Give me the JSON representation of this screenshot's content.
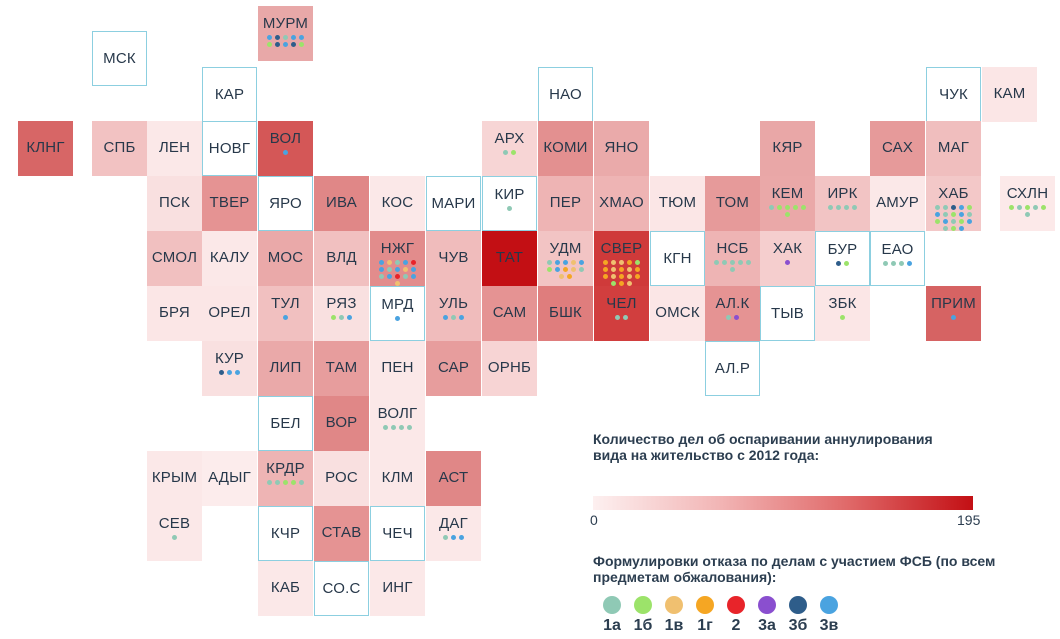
{
  "regions": [
    {
      "label": "МУРМ",
      "fill": "#e8a8a8",
      "dots": [
        "#4aa3e0",
        "#2e5d8a",
        "#8fc9b5",
        "#4aa3e0",
        "#4aa3e0",
        "#9ce36a",
        "#2e5d8a",
        "#4aa3e0",
        "#2e5d8a",
        "#9ce36a"
      ]
    },
    {
      "label": "МСК",
      "fill": "#ffffff",
      "outlined": true
    },
    {
      "label": "КАР",
      "fill": "#ffffff",
      "outlined": true
    },
    {
      "label": "НАО",
      "fill": "#ffffff",
      "outlined": true
    },
    {
      "label": "ЧУК",
      "fill": "#ffffff",
      "outlined": true
    },
    {
      "label": "КАМ",
      "fill": "#fbe6e6"
    },
    {
      "label": "КЛНГ",
      "fill": "#d76666"
    },
    {
      "label": "СПБ",
      "fill": "#f2c2c2"
    },
    {
      "label": "ЛЕН",
      "fill": "#fbe8e8"
    },
    {
      "label": "НОВГ",
      "fill": "#ffffff",
      "outlined": true
    },
    {
      "label": "ВОЛ",
      "fill": "#d45757",
      "dots": [
        "#4aa3e0"
      ]
    },
    {
      "label": "АРХ",
      "fill": "#f7d5d5",
      "dots": [
        "#8fc9b5",
        "#9ce36a"
      ]
    },
    {
      "label": "КОМИ",
      "fill": "#e39090"
    },
    {
      "label": "ЯНО",
      "fill": "#eaaaaa"
    },
    {
      "label": "КЯР",
      "fill": "#e9a7a7"
    },
    {
      "label": "САХ",
      "fill": "#e69a9a"
    },
    {
      "label": "МАГ",
      "fill": "#f0bebe"
    },
    {
      "label": "ПСК",
      "fill": "#f9e0e0"
    },
    {
      "label": "ТВЕР",
      "fill": "#e59393"
    },
    {
      "label": "ЯРО",
      "fill": "#ffffff",
      "outlined": true
    },
    {
      "label": "ИВА",
      "fill": "#e08787"
    },
    {
      "label": "КОС",
      "fill": "#fbe8e8"
    },
    {
      "label": "МАРИ",
      "fill": "#ffffff",
      "outlined": true
    },
    {
      "label": "КИР",
      "fill": "#ffffff",
      "outlined": true,
      "dots": [
        "#8fc9b5"
      ]
    },
    {
      "label": "ПЕР",
      "fill": "#eeb4b4"
    },
    {
      "label": "ХМАО",
      "fill": "#eeb4b4"
    },
    {
      "label": "ТЮМ",
      "fill": "#fbe6e6"
    },
    {
      "label": "ТОМ",
      "fill": "#e69a9a"
    },
    {
      "label": "КЕМ",
      "fill": "#eaa8a8",
      "dots": [
        "#8fc9b5",
        "#9ce36a",
        "#9ce36a",
        "#9ce36a",
        "#9ce36a",
        "#9ce36a"
      ]
    },
    {
      "label": "ИРК",
      "fill": "#f2c4c4",
      "dots": [
        "#8fc9b5",
        "#8fc9b5",
        "#8fc9b5",
        "#8fc9b5"
      ]
    },
    {
      "label": "АМУР",
      "fill": "#fbe8e8"
    },
    {
      "label": "ХАБ",
      "fill": "#f3c8c8",
      "dots": [
        "#8fc9b5",
        "#8fc9b5",
        "#2e5d8a",
        "#4aa3e0",
        "#9ce36a",
        "#4aa3e0",
        "#8fc9b5",
        "#9ce36a",
        "#4aa3e0",
        "#8fc9b5",
        "#9ce36a",
        "#4aa3e0",
        "#8fc9b5",
        "#9ce36a",
        "#4aa3e0",
        "#8fc9b5",
        "#9ce36a",
        "#4aa3e0"
      ]
    },
    {
      "label": "СХЛН",
      "fill": "#fce9e9",
      "dots": [
        "#9ce36a",
        "#8fc9b5",
        "#9ce36a",
        "#8fc9b5",
        "#9ce36a",
        "#8fc9b5"
      ]
    },
    {
      "label": "СМОЛ",
      "fill": "#f1c0c0"
    },
    {
      "label": "КАЛУ",
      "fill": "#fbe8e8"
    },
    {
      "label": "МОС",
      "fill": "#eaa9a9"
    },
    {
      "label": "ВЛД",
      "fill": "#f1c0c0"
    },
    {
      "label": "НЖГ",
      "fill": "#e28c8c",
      "dots": [
        "#4aa3e0",
        "#f0c070",
        "#8fc9b5",
        "#4aa3e0",
        "#e8242a",
        "#4aa3e0",
        "#8fc9b5",
        "#4aa3e0",
        "#f0c070",
        "#4aa3e0",
        "#8fc9b5",
        "#4aa3e0",
        "#e8242a",
        "#8fc9b5",
        "#4aa3e0",
        "#f0c070"
      ]
    },
    {
      "label": "ЧУВ",
      "fill": "#f0bcbc"
    },
    {
      "label": "ТАТ",
      "fill": "#c30f14"
    },
    {
      "label": "УДМ",
      "fill": "#f2c4c4",
      "dots": [
        "#8fc9b5",
        "#4aa3e0",
        "#4aa3e0",
        "#f0c070",
        "#4aa3e0",
        "#9ce36a",
        "#4aa3e0",
        "#f5a623",
        "#f0c070",
        "#8fc9b5",
        "#f0c070",
        "#f5a623"
      ]
    },
    {
      "label": "СВЕР",
      "fill": "#cf3a3a",
      "dots": [
        "#f5a623",
        "#f0c070",
        "#f0c070",
        "#f5a623",
        "#9ce36a",
        "#f5a623",
        "#f0c070",
        "#f5a623",
        "#f0c070",
        "#f5a623",
        "#f5a623",
        "#f0c070",
        "#f5a623",
        "#f0c070",
        "#f5a623",
        "#9ce36a",
        "#f5a623",
        "#f0c070"
      ]
    },
    {
      "label": "КГН",
      "fill": "#ffffff",
      "outlined": true
    },
    {
      "label": "НСБ",
      "fill": "#eeb4b4",
      "dots": [
        "#8fc9b5",
        "#8fc9b5",
        "#8fc9b5",
        "#8fc9b5",
        "#8fc9b5",
        "#8fc9b5"
      ]
    },
    {
      "label": "ХАК",
      "fill": "#f5cece",
      "dots": [
        "#8a4fcf"
      ]
    },
    {
      "label": "БУР",
      "fill": "#ffffff",
      "outlined": true,
      "dots": [
        "#2e5d8a",
        "#9ce36a"
      ]
    },
    {
      "label": "ЕАО",
      "fill": "#ffffff",
      "outlined": true,
      "dots": [
        "#8fc9b5",
        "#8fc9b5",
        "#8fc9b5",
        "#4aa3e0"
      ]
    },
    {
      "label": "БРЯ",
      "fill": "#fbe6e6"
    },
    {
      "label": "ОРЕЛ",
      "fill": "#fbe6e6"
    },
    {
      "label": "ТУЛ",
      "fill": "#f1c0c0",
      "dots": [
        "#4aa3e0"
      ]
    },
    {
      "label": "РЯЗ",
      "fill": "#f9e0e0",
      "dots": [
        "#9ce36a",
        "#8fc9b5",
        "#4aa3e0"
      ]
    },
    {
      "label": "МРД",
      "fill": "#ffffff",
      "outlined": true,
      "dots": [
        "#4aa3e0"
      ]
    },
    {
      "label": "УЛЬ",
      "fill": "#f0bcbc",
      "dots": [
        "#4aa3e0",
        "#8fc9b5",
        "#4aa3e0"
      ]
    },
    {
      "label": "САМ",
      "fill": "#e59393"
    },
    {
      "label": "БШК",
      "fill": "#df7d7d"
    },
    {
      "label": "ЧЕЛ",
      "fill": "#d13e3e",
      "dots": [
        "#8fc9b5",
        "#8fc9b5"
      ]
    },
    {
      "label": "ОМСК",
      "fill": "#fbe6e6"
    },
    {
      "label": "АЛ.К",
      "fill": "#e59393",
      "dots": [
        "#8fc9b5",
        "#8a4fcf"
      ]
    },
    {
      "label": "ТЫВ",
      "fill": "#ffffff",
      "outlined": true
    },
    {
      "label": "ЗБК",
      "fill": "#fbe6e6",
      "dots": [
        "#9ce36a"
      ]
    },
    {
      "label": "ПРИМ",
      "fill": "#d66363",
      "dots": [
        "#4aa3e0"
      ]
    },
    {
      "label": "КУР",
      "fill": "#f9e0e0",
      "dots": [
        "#2e5d8a",
        "#4aa3e0",
        "#4aa3e0"
      ]
    },
    {
      "label": "ЛИП",
      "fill": "#eaa9a9"
    },
    {
      "label": "ТАМ",
      "fill": "#e79d9d"
    },
    {
      "label": "ПЕН",
      "fill": "#fbe8e8"
    },
    {
      "label": "САР",
      "fill": "#e79d9d"
    },
    {
      "label": "ОРНБ",
      "fill": "#f7d4d4"
    },
    {
      "label": "АЛ.Р",
      "fill": "#ffffff",
      "outlined": true
    },
    {
      "label": "БЕЛ",
      "fill": "#ffffff",
      "outlined": true
    },
    {
      "label": "ВОР",
      "fill": "#e08787"
    },
    {
      "label": "ВОЛГ",
      "fill": "#fbe8e8",
      "dots": [
        "#8fc9b5",
        "#8fc9b5",
        "#8fc9b5",
        "#8fc9b5"
      ]
    },
    {
      "label": "КРЫМ",
      "fill": "#fbe8e8"
    },
    {
      "label": "АДЫГ",
      "fill": "#fcecec"
    },
    {
      "label": "КРДР",
      "fill": "#eeb4b4",
      "dots": [
        "#8fc9b5",
        "#8fc9b5",
        "#9ce36a",
        "#9ce36a",
        "#8fc9b5"
      ]
    },
    {
      "label": "РОС",
      "fill": "#f9e0e0"
    },
    {
      "label": "КЛМ",
      "fill": "#fbe8e8"
    },
    {
      "label": "АСТ",
      "fill": "#e08787"
    },
    {
      "label": "СЕВ",
      "fill": "#fbe8e8",
      "dots": [
        "#8fc9b5"
      ]
    },
    {
      "label": "КЧР",
      "fill": "#ffffff",
      "outlined": true
    },
    {
      "label": "СТАВ",
      "fill": "#e59393"
    },
    {
      "label": "ЧЕЧ",
      "fill": "#ffffff",
      "outlined": true
    },
    {
      "label": "ДАГ",
      "fill": "#fbe8e8",
      "dots": [
        "#8fc9b5",
        "#4aa3e0",
        "#4aa3e0"
      ]
    },
    {
      "label": "КАБ",
      "fill": "#fbe8e8"
    },
    {
      "label": "СО.С",
      "fill": "#ffffff",
      "outlined": true
    },
    {
      "label": "ИНГ",
      "fill": "#fbe8e8"
    }
  ],
  "legend": {
    "title": "Количество дел об оспаривании аннулирования вида на жительство с 2012 года:",
    "min_label": "0",
    "max_label": "195",
    "max_value": 195,
    "gradient_colors": [
      "#fdf0f0",
      "#c30f14"
    ]
  },
  "fsb_legend": {
    "title": "Формулировки отказа по делам с участием ФСБ (по всем предметам обжалования):",
    "items": [
      {
        "label": "1а",
        "color": "#8fc9b5"
      },
      {
        "label": "1б",
        "color": "#9ce36a"
      },
      {
        "label": "1в",
        "color": "#f0c070"
      },
      {
        "label": "1г",
        "color": "#f5a623"
      },
      {
        "label": "2",
        "color": "#e8242a"
      },
      {
        "label": "3а",
        "color": "#8a4fcf"
      },
      {
        "label": "3б",
        "color": "#2e5d8a"
      },
      {
        "label": "3в",
        "color": "#4aa3e0"
      }
    ]
  }
}
